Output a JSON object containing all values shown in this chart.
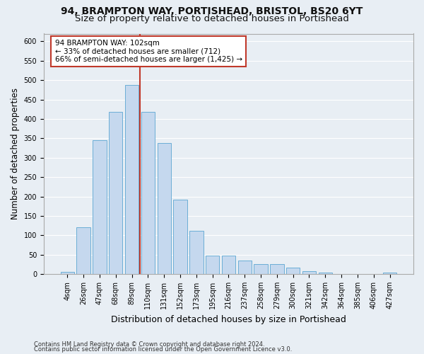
{
  "title1": "94, BRAMPTON WAY, PORTISHEAD, BRISTOL, BS20 6YT",
  "title2": "Size of property relative to detached houses in Portishead",
  "xlabel": "Distribution of detached houses by size in Portishead",
  "ylabel": "Number of detached properties",
  "categories": [
    "4sqm",
    "26sqm",
    "47sqm",
    "68sqm",
    "89sqm",
    "110sqm",
    "131sqm",
    "152sqm",
    "173sqm",
    "195sqm",
    "216sqm",
    "237sqm",
    "258sqm",
    "279sqm",
    "300sqm",
    "321sqm",
    "342sqm",
    "364sqm",
    "385sqm",
    "406sqm",
    "427sqm"
  ],
  "values": [
    5,
    120,
    345,
    418,
    487,
    418,
    338,
    192,
    112,
    48,
    48,
    35,
    25,
    25,
    17,
    8,
    3,
    1,
    1,
    1,
    4
  ],
  "bar_color": "#c5d8ee",
  "bar_edge_color": "#6baed6",
  "vline_color": "#c0392b",
  "annotation_text": "94 BRAMPTON WAY: 102sqm\n← 33% of detached houses are smaller (712)\n66% of semi-detached houses are larger (1,425) →",
  "annotation_box_color": "#ffffff",
  "annotation_box_edge_color": "#c0392b",
  "bg_color": "#e8eef4",
  "grid_color": "#ffffff",
  "footer1": "Contains HM Land Registry data © Crown copyright and database right 2024.",
  "footer2": "Contains public sector information licensed under the Open Government Licence v3.0.",
  "ylim": [
    0,
    620
  ],
  "yticks": [
    0,
    50,
    100,
    150,
    200,
    250,
    300,
    350,
    400,
    450,
    500,
    550,
    600
  ],
  "title1_fontsize": 10,
  "title2_fontsize": 9.5,
  "ylabel_fontsize": 8.5,
  "xlabel_fontsize": 9,
  "tick_fontsize": 7,
  "footer_fontsize": 6,
  "annot_fontsize": 7.5
}
